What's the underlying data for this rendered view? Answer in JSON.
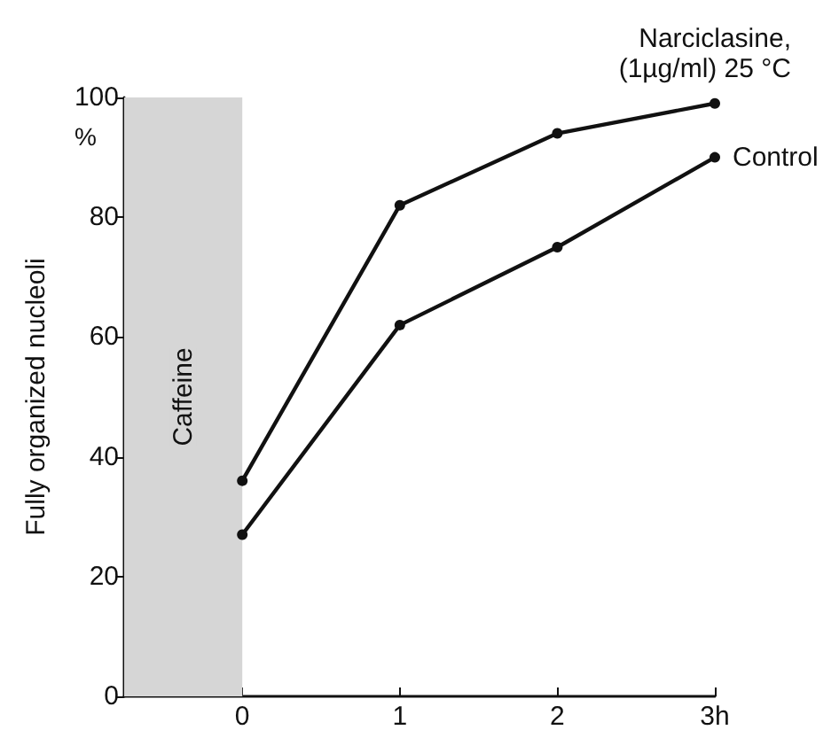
{
  "chart_data": {
    "type": "line",
    "ylabel": "Fully organized nucleoli",
    "annotations": [
      "%"
    ],
    "x": [
      0,
      1,
      2,
      3
    ],
    "series": [
      {
        "name": "Narciclasine,\n(1µg/ml) 25 °C",
        "color": "#111111",
        "values": [
          36,
          82,
          94,
          99
        ]
      },
      {
        "name": "Control",
        "color": "#111111",
        "values": [
          27,
          62,
          75,
          90
        ]
      }
    ],
    "xlim": [
      -0.75,
      3
    ],
    "xticks": [
      0,
      1,
      2,
      {
        "value": 3,
        "label": "3h"
      }
    ],
    "ylim": [
      0,
      100
    ],
    "yticks": [
      0,
      20,
      40,
      60,
      80,
      100
    ],
    "bands": [
      {
        "axis": "x",
        "from": -0.75,
        "to": 0,
        "label": "Caffeine",
        "color": "#d6d6d6"
      }
    ],
    "grid": false,
    "legend": false,
    "marker": "circle",
    "line_style": "solid"
  }
}
